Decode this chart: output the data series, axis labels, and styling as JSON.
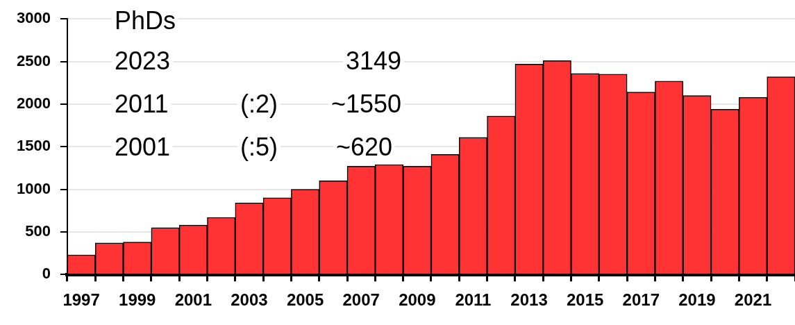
{
  "chart_data": {
    "type": "bar",
    "categories": [
      "1997",
      null,
      "1999",
      null,
      "2001",
      null,
      "2003",
      null,
      "2005",
      null,
      "2007",
      null,
      "2009",
      null,
      "2011",
      null,
      "2013",
      null,
      "2015",
      null,
      "2017",
      null,
      "2019",
      null,
      "2021",
      null
    ],
    "values": [
      230,
      370,
      380,
      550,
      580,
      670,
      840,
      900,
      1000,
      1100,
      1270,
      1290,
      1270,
      1410,
      1610,
      1860,
      2470,
      2510,
      2360,
      2350,
      2140,
      2270,
      2100,
      1940,
      2080,
      2320
    ],
    "color": "#ff3333",
    "ylim": [
      0,
      3000
    ],
    "yticks": [
      0,
      500,
      1000,
      1500,
      2000,
      2500,
      3000
    ],
    "grid": "y",
    "legend": false,
    "annotations": [
      "PhDs",
      "2023",
      "3149",
      "2011",
      "(:2)",
      "~1550",
      "2001",
      "(:5)",
      "~620"
    ]
  }
}
